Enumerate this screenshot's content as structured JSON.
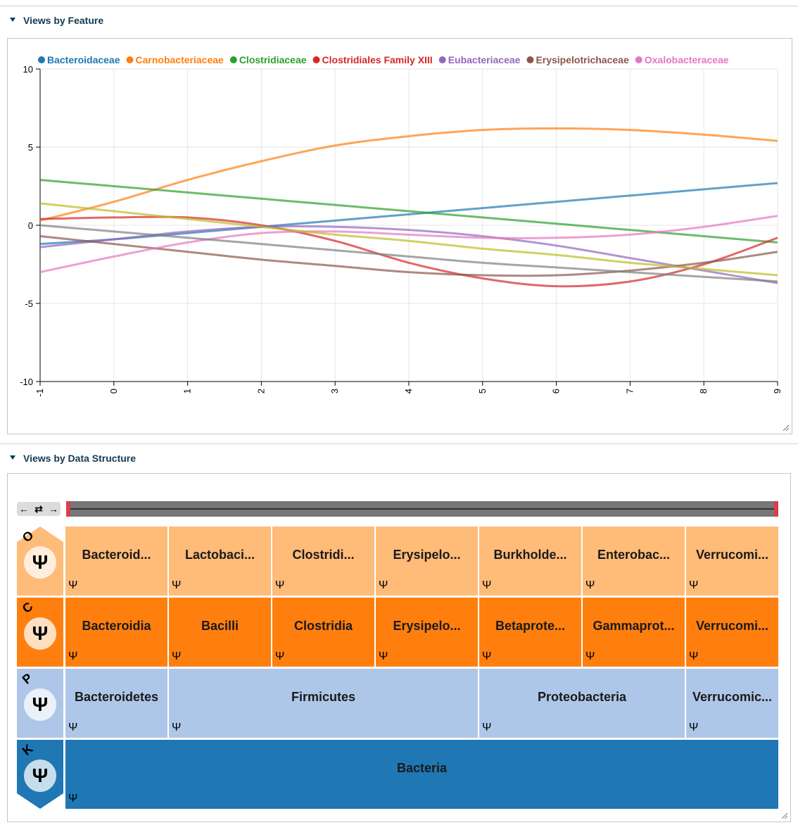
{
  "panels": {
    "feature_title": "Views by Feature",
    "structure_title": "Views by Data Structure"
  },
  "chart_data": {
    "type": "line",
    "xlim": [
      -1,
      9
    ],
    "ylim": [
      -10,
      10
    ],
    "x_ticks": [
      "-1",
      "0",
      "1",
      "2",
      "3",
      "4",
      "5",
      "6",
      "7",
      "8",
      "9"
    ],
    "y_ticks": [
      "10",
      "5",
      "0",
      "-5",
      "-10"
    ],
    "grid": true,
    "legend_position": "top",
    "x": [
      -1,
      0,
      1,
      2,
      3,
      4,
      5,
      6,
      7,
      8,
      9
    ],
    "series": [
      {
        "name": "Bacteroidaceae",
        "color": "#1f77b4",
        "values": [
          -1.2,
          -0.9,
          -0.5,
          -0.1,
          0.3,
          0.7,
          1.1,
          1.5,
          1.9,
          2.3,
          2.7
        ]
      },
      {
        "name": "Carnobacteriaceae",
        "color": "#ff7f0e",
        "values": [
          0.3,
          1.5,
          2.9,
          4.1,
          5.1,
          5.7,
          6.1,
          6.2,
          6.1,
          5.8,
          5.4
        ]
      },
      {
        "name": "Clostridiaceae",
        "color": "#2ca02c",
        "values": [
          2.9,
          2.5,
          2.1,
          1.7,
          1.3,
          0.9,
          0.5,
          0.1,
          -0.3,
          -0.7,
          -1.1
        ]
      },
      {
        "name": "Clostridiales Family XIII",
        "color": "#d62728",
        "values": [
          0.4,
          0.5,
          0.5,
          0.0,
          -1.0,
          -2.4,
          -3.4,
          -3.9,
          -3.6,
          -2.5,
          -0.8
        ]
      },
      {
        "name": "Eubacteriaceae",
        "color": "#9467bd",
        "values": [
          -1.4,
          -0.9,
          -0.4,
          -0.1,
          -0.1,
          -0.3,
          -0.7,
          -1.3,
          -2.1,
          -2.9,
          -3.7
        ]
      },
      {
        "name": "Erysipelotrichaceae",
        "color": "#8c564b",
        "values": [
          -0.7,
          -1.2,
          -1.7,
          -2.2,
          -2.6,
          -3.0,
          -3.2,
          -3.2,
          -2.9,
          -2.4,
          -1.7
        ]
      },
      {
        "name": "Oxalobacteraceae",
        "color": "#e377c2",
        "values": [
          -3.0,
          -2.0,
          -1.1,
          -0.5,
          -0.4,
          -0.6,
          -0.8,
          -0.8,
          -0.6,
          -0.1,
          0.6
        ]
      },
      {
        "name": "",
        "color": "#7f7f7f",
        "values": [
          0.0,
          -0.4,
          -0.8,
          -1.2,
          -1.6,
          -2.0,
          -2.4,
          -2.7,
          -3.0,
          -3.3,
          -3.6
        ]
      },
      {
        "name": "",
        "color": "#bcbd22",
        "values": [
          1.4,
          0.9,
          0.4,
          -0.1,
          -0.6,
          -1.0,
          -1.5,
          -1.9,
          -2.4,
          -2.8,
          -3.2
        ]
      }
    ]
  },
  "controls": {
    "back_label": "←",
    "swap_label": "⇄",
    "forward_label": "→"
  },
  "hierarchy": {
    "glyph": "Ψ",
    "rows": [
      {
        "letter": "O",
        "color": "#ffbb78",
        "cells": [
          {
            "name": "Bacteroid...",
            "span": 1
          },
          {
            "name": "Lactobaci...",
            "span": 1
          },
          {
            "name": "Clostridi...",
            "span": 1
          },
          {
            "name": "Erysipelo...",
            "span": 1
          },
          {
            "name": "Burkholde...",
            "span": 1
          },
          {
            "name": "Enterobac...",
            "span": 1
          },
          {
            "name": "Verrucomi...",
            "span": 1
          }
        ]
      },
      {
        "letter": "C",
        "color": "#ff7f0e",
        "cells": [
          {
            "name": "Bacteroidia",
            "span": 1
          },
          {
            "name": "Bacilli",
            "span": 1
          },
          {
            "name": "Clostridia",
            "span": 1
          },
          {
            "name": "Erysipelo...",
            "span": 1
          },
          {
            "name": "Betaprote...",
            "span": 1
          },
          {
            "name": "Gammaprot...",
            "span": 1
          },
          {
            "name": "Verrucomi...",
            "span": 1
          }
        ]
      },
      {
        "letter": "P",
        "color": "#aec7e8",
        "cells": [
          {
            "name": "Bacteroidetes",
            "span": 1
          },
          {
            "name": "Firmicutes",
            "span": 3
          },
          {
            "name": "Proteobacteria",
            "span": 2
          },
          {
            "name": "Verrucomic...",
            "span": 1
          }
        ]
      },
      {
        "letter": "K",
        "color": "#1f77b4",
        "cells": [
          {
            "name": "Bacteria",
            "span": 7
          }
        ]
      }
    ]
  }
}
